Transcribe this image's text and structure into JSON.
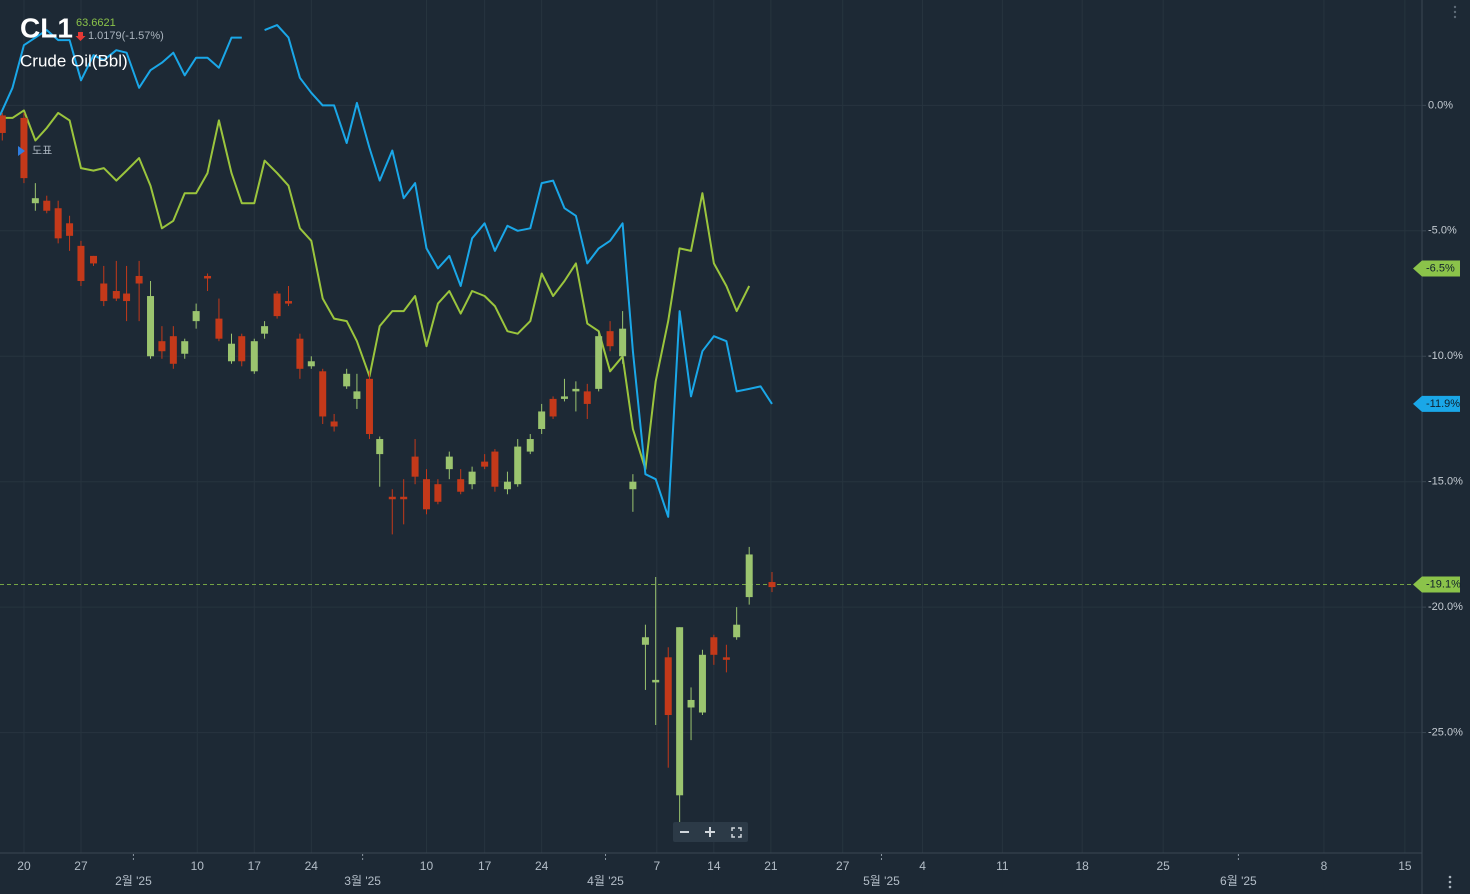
{
  "chart_data": {
    "type": "candlestick",
    "title": "CL1",
    "subtitle": "Crude Oil(Bbl)",
    "last_price": "63.6621",
    "change": "1.0179(-1.57%)",
    "marker_label": "도표",
    "up_color": "#9bc46f",
    "down_color": "#c4391a",
    "grid": true,
    "xlim": [
      0,
      124.7
    ],
    "ylim": [
      -29.8,
      4.2
    ],
    "yticks": [
      {
        "value": 0,
        "label": "0.0%"
      },
      {
        "value": -5,
        "label": "-5.0%"
      },
      {
        "value": -10,
        "label": "-10.0%"
      },
      {
        "value": -15,
        "label": "-15.0%"
      },
      {
        "value": -20,
        "label": "-20.0%"
      },
      {
        "value": -25,
        "label": "-25.0%"
      }
    ],
    "xticks": [
      {
        "value": 2.1,
        "label": "20"
      },
      {
        "value": 7.1,
        "label": "27"
      },
      {
        "value": 17.3,
        "label": "10"
      },
      {
        "value": 22.3,
        "label": "17"
      },
      {
        "value": 27.3,
        "label": "24"
      },
      {
        "value": 37.4,
        "label": "10"
      },
      {
        "value": 42.5,
        "label": "17"
      },
      {
        "value": 47.5,
        "label": "24"
      },
      {
        "value": 57.6,
        "label": "7"
      },
      {
        "value": 62.6,
        "label": "14"
      },
      {
        "value": 67.6,
        "label": "21"
      },
      {
        "value": 73.9,
        "label": "27"
      },
      {
        "value": 80.9,
        "label": "4"
      },
      {
        "value": 87.9,
        "label": "11"
      },
      {
        "value": 94.9,
        "label": "18"
      },
      {
        "value": 102.0,
        "label": "25"
      },
      {
        "value": 116.1,
        "label": "8"
      },
      {
        "value": 123.2,
        "label": "15"
      }
    ],
    "xticks_month": [
      {
        "value": 11.7,
        "label": "2월 '25"
      },
      {
        "value": 31.8,
        "label": "3월 '25"
      },
      {
        "value": 53.1,
        "label": "4월 '25"
      },
      {
        "value": 77.3,
        "label": "5월 '25"
      },
      {
        "value": 108.6,
        "label": "6월 '25"
      }
    ],
    "x": [
      0.2,
      2.1,
      3.1,
      4.1,
      5.1,
      6.1,
      7.1,
      8.2,
      9.1,
      10.2,
      11.1,
      12.2,
      13.2,
      14.2,
      15.2,
      16.2,
      17.2,
      18.2,
      19.2,
      20.3,
      21.2,
      22.3,
      23.2,
      24.3,
      25.3,
      26.3,
      27.3,
      28.3,
      29.3,
      30.4,
      31.3,
      32.4,
      33.3,
      34.4,
      35.4,
      36.4,
      37.4,
      38.4,
      39.4,
      40.4,
      41.4,
      42.5,
      43.4,
      44.5,
      45.4,
      46.5,
      47.5,
      48.5,
      49.5,
      50.5,
      51.5,
      52.5,
      53.5,
      54.6,
      55.5,
      56.6,
      57.5,
      58.6,
      59.6,
      60.6,
      61.6,
      62.6,
      63.7,
      64.6,
      65.7,
      67.7
    ],
    "open": [
      -0.4,
      -0.5,
      -3.9,
      -3.8,
      -4.1,
      -4.7,
      -5.6,
      -6.0,
      -7.1,
      -7.4,
      -7.5,
      -6.8,
      -10.0,
      -9.4,
      -9.2,
      -9.9,
      -8.6,
      -6.8,
      -8.5,
      -10.2,
      -9.2,
      -10.6,
      -9.1,
      -7.5,
      -7.8,
      -9.3,
      -10.4,
      -10.6,
      -12.6,
      -11.2,
      -11.7,
      -10.9,
      -13.9,
      -15.6,
      -15.6,
      -14.0,
      -14.9,
      -15.1,
      -14.5,
      -14.9,
      -15.1,
      -14.2,
      -13.8,
      -15.3,
      -15.1,
      -13.8,
      -12.9,
      -11.7,
      -11.7,
      -11.4,
      -11.4,
      -11.3,
      -9.0,
      -10.0,
      -15.3,
      -21.5,
      -23.0,
      -22.0,
      -27.5,
      -24.0,
      -24.2,
      -21.2,
      -22.0,
      -21.2,
      -19.6,
      -19.0
    ],
    "high": [
      -0.3,
      -0.3,
      -3.1,
      -3.6,
      -3.8,
      -4.4,
      -5.4,
      -6.0,
      -6.4,
      -6.2,
      -6.4,
      -6.2,
      -7.0,
      -8.8,
      -8.8,
      -9.3,
      -7.9,
      -6.7,
      -7.7,
      -9.1,
      -9.1,
      -9.3,
      -8.6,
      -7.4,
      -7.2,
      -9.1,
      -10.0,
      -10.5,
      -12.3,
      -10.5,
      -10.7,
      -10.6,
      -13.2,
      -15.3,
      -14.9,
      -13.3,
      -14.5,
      -14.9,
      -13.8,
      -14.5,
      -14.4,
      -13.9,
      -13.7,
      -14.6,
      -13.3,
      -13.1,
      -11.9,
      -11.6,
      -10.9,
      -11.0,
      -11.1,
      -9.0,
      -8.6,
      -8.2,
      -14.7,
      -20.7,
      -18.8,
      -21.6,
      -20.8,
      -23.2,
      -21.7,
      -21.1,
      -21.5,
      -20.0,
      -17.6,
      -18.6
    ],
    "low": [
      -1.4,
      -3.1,
      -4.2,
      -4.3,
      -5.5,
      -5.8,
      -7.2,
      -6.4,
      -8.0,
      -7.8,
      -8.6,
      -8.6,
      -10.1,
      -10.1,
      -10.5,
      -10.1,
      -8.9,
      -7.4,
      -9.4,
      -10.3,
      -10.4,
      -10.7,
      -9.3,
      -8.5,
      -8.0,
      -10.9,
      -10.5,
      -12.7,
      -13.0,
      -11.3,
      -12.1,
      -13.3,
      -15.2,
      -17.1,
      -16.7,
      -15.1,
      -16.3,
      -15.9,
      -14.9,
      -15.5,
      -15.3,
      -14.5,
      -15.4,
      -15.5,
      -15.2,
      -13.9,
      -13.1,
      -12.5,
      -11.8,
      -12.2,
      -12.5,
      -11.4,
      -9.8,
      -10.3,
      -16.2,
      -23.3,
      -24.7,
      -26.4,
      -28.6,
      -25.3,
      -24.3,
      -22.3,
      -22.6,
      -21.3,
      -19.9,
      -19.4
    ],
    "close": [
      -1.1,
      -2.9,
      -3.7,
      -4.2,
      -5.3,
      -5.2,
      -7.0,
      -6.3,
      -7.8,
      -7.7,
      -7.8,
      -7.1,
      -7.6,
      -9.8,
      -10.3,
      -9.4,
      -8.2,
      -6.9,
      -9.3,
      -9.5,
      -10.2,
      -9.4,
      -8.8,
      -8.4,
      -7.9,
      -10.5,
      -10.2,
      -12.4,
      -12.8,
      -10.7,
      -11.4,
      -13.1,
      -13.3,
      -15.7,
      -15.7,
      -14.8,
      -16.1,
      -15.8,
      -14.0,
      -15.4,
      -14.6,
      -14.4,
      -15.2,
      -15.0,
      -13.6,
      -13.3,
      -12.2,
      -12.4,
      -11.6,
      -11.3,
      -11.9,
      -9.2,
      -9.6,
      -8.9,
      -15.0,
      -21.2,
      -22.9,
      -24.3,
      -20.8,
      -23.7,
      -21.9,
      -21.9,
      -22.1,
      -20.7,
      -17.9,
      -19.2
    ],
    "series": [
      {
        "color": "#9bc53d",
        "x": [
          0,
          1.1,
          2.1,
          3.1,
          4.1,
          5.1,
          6.1,
          7.1,
          8.2,
          9.1,
          10.2,
          11.1,
          12.2,
          13.2,
          14.2,
          15.2,
          16.2,
          17.2,
          18.2,
          19.2,
          20.3,
          21.2,
          22.3,
          23.2,
          24.3,
          25.3,
          26.3,
          27.3,
          28.3,
          29.3,
          30.4,
          31.3,
          32.4,
          33.3,
          34.4,
          35.4,
          36.4,
          37.4,
          38.4,
          39.4,
          40.4,
          41.4,
          42.5,
          43.4,
          44.5,
          45.4,
          46.5,
          47.5,
          48.5,
          49.5,
          50.5,
          51.5,
          52.5,
          53.5,
          54.6,
          55.5,
          56.6,
          57.5,
          58.6,
          59.6,
          60.6,
          61.6,
          62.6,
          63.7,
          64.6,
          65.7
        ],
        "values": [
          -0.5,
          -0.5,
          -0.2,
          -1.4,
          -0.9,
          -0.3,
          -0.6,
          -2.5,
          -2.6,
          -2.5,
          -3.0,
          -2.6,
          -2.1,
          -3.2,
          -4.9,
          -4.6,
          -3.5,
          -3.5,
          -2.7,
          -0.6,
          -2.7,
          -3.9,
          -3.9,
          -2.2,
          -2.7,
          -3.2,
          -4.9,
          -5.4,
          -7.7,
          -8.5,
          -8.6,
          -9.4,
          -10.8,
          -8.8,
          -8.2,
          -8.2,
          -7.6,
          -9.6,
          -7.9,
          -7.4,
          -8.3,
          -7.4,
          -7.6,
          -8.0,
          -9.0,
          -9.1,
          -8.6,
          -6.7,
          -7.6,
          -7.0,
          -6.3,
          -8.7,
          -9.0,
          -10.6,
          -10.0,
          -12.9,
          -14.5,
          -11.0,
          -8.6,
          -5.7,
          -5.8,
          -3.5,
          -6.3,
          -7.2,
          -8.2,
          -7.2
        ]
      },
      {
        "color": "#1aa7e8",
        "x": [
          0,
          1.1,
          2.1,
          3.1,
          4.1,
          5.1,
          6.1,
          7.1,
          8.2,
          9.1,
          10.2,
          11.1,
          12.2,
          13.2,
          14.2,
          15.2,
          16.2,
          17.2,
          18.2,
          19.2,
          20.3,
          21.2,
          22.3,
          23.2,
          24.3,
          25.3,
          26.3,
          27.3,
          28.3,
          29.3,
          30.4,
          31.3,
          32.4,
          33.3,
          34.4,
          35.4,
          36.4,
          37.4,
          38.4,
          39.4,
          40.4,
          41.4,
          42.5,
          43.4,
          44.5,
          45.4,
          46.5,
          47.5,
          48.5,
          49.5,
          50.5,
          51.5,
          52.5,
          53.5,
          54.6,
          55.5,
          56.6,
          57.5,
          58.6,
          59.6,
          60.6,
          61.6,
          62.6,
          63.7,
          64.6,
          65.7,
          66.7,
          67.7
        ],
        "values": [
          -0.4,
          0.7,
          2.4,
          2.7,
          3.0,
          2.6,
          2.6,
          1.0,
          2.0,
          1.8,
          2.2,
          2.1,
          0.7,
          1.4,
          1.7,
          2.1,
          1.2,
          1.9,
          1.9,
          1.5,
          2.7,
          2.7,
          null,
          3.0,
          3.2,
          2.7,
          1.1,
          0.5,
          0.0,
          0.0,
          -1.5,
          0.1,
          -1.7,
          -3.0,
          -1.8,
          -3.7,
          -3.1,
          -5.7,
          -6.5,
          -6.0,
          -7.2,
          -5.3,
          -4.7,
          -5.8,
          -4.8,
          -5.0,
          -4.9,
          -3.1,
          -3.0,
          -4.1,
          -4.4,
          -6.3,
          -5.7,
          -5.4,
          -4.7,
          -9.8,
          -14.7,
          -14.9,
          -16.4,
          -8.2,
          -11.6,
          -9.8,
          -9.2,
          -9.4,
          -11.4,
          -11.3,
          -11.2,
          -11.9
        ]
      }
    ],
    "price_tags": [
      {
        "value": -6.5,
        "label": "-6.5%",
        "color": "#8bc34a"
      },
      {
        "value": -11.9,
        "label": "-11.9%",
        "color": "#1aa7e8"
      },
      {
        "value": -19.1,
        "label": "-19.1%",
        "color": "#8bc34a",
        "dashed_line": true
      }
    ]
  }
}
